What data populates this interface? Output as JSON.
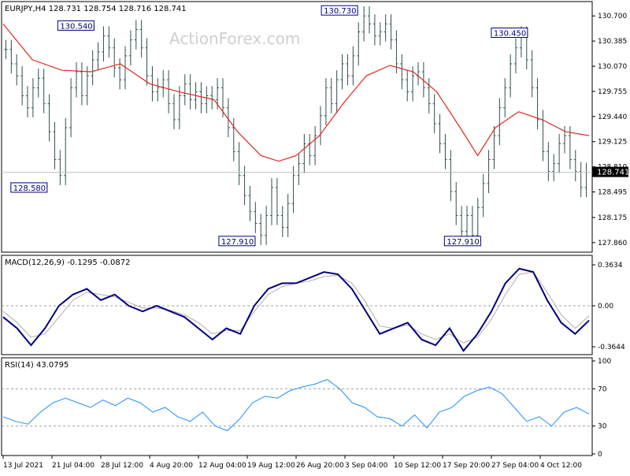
{
  "header": {
    "symbol_line": "EURJPY,H4  128.731 128.754 128.716 128.741",
    "watermark": "ActionForex.com"
  },
  "chart_data": [
    {
      "type": "line",
      "name": "price-panel",
      "ylim": [
        127.76,
        130.86
      ],
      "y_ticks": [
        "130.700",
        "130.385",
        "130.070",
        "129.755",
        "129.440",
        "129.125",
        "128.810",
        "128.495",
        "128.175",
        "127.860"
      ],
      "current_price_label": "128.741",
      "current_price": 128.741,
      "close": [
        130.28,
        130.1,
        129.95,
        129.7,
        129.55,
        129.8,
        129.92,
        129.6,
        129.25,
        128.9,
        128.7,
        129.3,
        129.8,
        130.0,
        129.7,
        129.95,
        130.15,
        130.25,
        130.45,
        130.3,
        130.05,
        129.9,
        130.2,
        130.4,
        130.53,
        130.3,
        129.95,
        129.75,
        129.8,
        129.9,
        129.6,
        129.4,
        129.7,
        129.85,
        129.65,
        129.75,
        129.6,
        129.7,
        129.65,
        129.8,
        129.55,
        129.3,
        129.0,
        128.7,
        128.45,
        128.25,
        128.1,
        127.95,
        128.2,
        128.55,
        128.2,
        128.05,
        128.35,
        128.7,
        128.85,
        129.1,
        128.95,
        129.2,
        129.45,
        129.8,
        129.6,
        129.9,
        130.1,
        129.95,
        130.2,
        130.5,
        130.7,
        130.6,
        130.45,
        130.5,
        130.6,
        130.4,
        130.1,
        129.9,
        129.75,
        129.95,
        130.0,
        129.8,
        129.6,
        129.35,
        129.1,
        128.9,
        128.5,
        128.2,
        128.0,
        128.2,
        127.95,
        128.3,
        128.6,
        128.9,
        129.2,
        129.55,
        129.8,
        130.1,
        130.3,
        130.45,
        130.15,
        129.8,
        129.4,
        129.0,
        128.75,
        128.85,
        129.1,
        129.2,
        128.9,
        128.75,
        128.55,
        128.74
      ],
      "ma_points": [
        [
          0,
          130.6
        ],
        [
          0.05,
          130.15
        ],
        [
          0.1,
          130.02
        ],
        [
          0.15,
          130.0
        ],
        [
          0.2,
          130.1
        ],
        [
          0.25,
          129.85
        ],
        [
          0.3,
          129.75
        ],
        [
          0.36,
          129.65
        ],
        [
          0.4,
          129.25
        ],
        [
          0.44,
          128.95
        ],
        [
          0.47,
          128.88
        ],
        [
          0.5,
          128.95
        ],
        [
          0.54,
          129.2
        ],
        [
          0.58,
          129.6
        ],
        [
          0.62,
          129.95
        ],
        [
          0.66,
          130.08
        ],
        [
          0.7,
          130.0
        ],
        [
          0.74,
          129.75
        ],
        [
          0.78,
          129.3
        ],
        [
          0.81,
          128.95
        ],
        [
          0.84,
          129.3
        ],
        [
          0.88,
          129.5
        ],
        [
          0.92,
          129.4
        ],
        [
          0.96,
          129.25
        ],
        [
          1.0,
          129.2
        ]
      ],
      "swing_labels": [
        {
          "text": "130.540",
          "x": 0.155,
          "value": 130.54
        },
        {
          "text": "128.580",
          "x": 0.075,
          "value": 128.58
        },
        {
          "text": "130.730",
          "x": 0.605,
          "value": 130.73
        },
        {
          "text": "127.910",
          "x": 0.43,
          "value": 127.91
        },
        {
          "text": "130.450",
          "x": 0.895,
          "value": 130.45
        },
        {
          "text": "127.910",
          "x": 0.815,
          "value": 127.91
        }
      ]
    },
    {
      "type": "line",
      "name": "macd-panel",
      "title": "MACD(12,26,9) -0.1295 -0.0872",
      "ylim": [
        -0.42,
        0.42
      ],
      "y_ticks": [
        "0.3634",
        "0.00",
        "-0.3644"
      ],
      "macd": [
        -0.1,
        -0.2,
        -0.35,
        -0.2,
        0.0,
        0.1,
        0.15,
        0.05,
        0.1,
        0.0,
        -0.05,
        0.0,
        -0.05,
        -0.1,
        -0.2,
        -0.3,
        -0.2,
        -0.25,
        0.0,
        0.15,
        0.2,
        0.2,
        0.25,
        0.3,
        0.28,
        0.15,
        -0.05,
        -0.25,
        -0.2,
        -0.15,
        -0.3,
        -0.35,
        -0.2,
        -0.4,
        -0.25,
        -0.05,
        0.2,
        0.33,
        0.3,
        0.05,
        -0.15,
        -0.25,
        -0.13
      ],
      "signal": [
        -0.05,
        -0.15,
        -0.28,
        -0.25,
        -0.1,
        0.05,
        0.12,
        0.1,
        0.08,
        0.03,
        -0.02,
        -0.02,
        -0.04,
        -0.08,
        -0.15,
        -0.25,
        -0.22,
        -0.22,
        -0.05,
        0.1,
        0.17,
        0.2,
        0.22,
        0.26,
        0.27,
        0.2,
        0.03,
        -0.18,
        -0.2,
        -0.17,
        -0.25,
        -0.3,
        -0.25,
        -0.33,
        -0.28,
        -0.12,
        0.1,
        0.28,
        0.3,
        0.12,
        -0.08,
        -0.2,
        -0.09
      ]
    },
    {
      "type": "line",
      "name": "rsi-panel",
      "title": "RSI(14) 43.0795",
      "ylim": [
        0,
        100
      ],
      "y_ticks": [
        "100",
        "70",
        "30",
        "0"
      ],
      "levels": [
        70,
        30
      ],
      "rsi": [
        40,
        35,
        32,
        45,
        55,
        60,
        55,
        50,
        58,
        52,
        60,
        55,
        45,
        50,
        40,
        35,
        45,
        30,
        25,
        38,
        55,
        62,
        60,
        68,
        72,
        75,
        80,
        70,
        55,
        50,
        40,
        38,
        30,
        42,
        28,
        45,
        50,
        62,
        68,
        72,
        65,
        50,
        35,
        40,
        30,
        45,
        50,
        43
      ]
    }
  ],
  "x_axis": {
    "tick_labels": [
      "13 Jul 2021",
      "21 Jul 04:00",
      "28 Jul 12:00",
      "4 Aug 20:00",
      "12 Aug 04:00",
      "19 Aug 12:00",
      "26 Aug 20:00",
      "3 Sep 04:00",
      "10 Sep 12:00",
      "17 Sep 20:00",
      "27 Sep 04:00",
      "4 Oct 12:00"
    ]
  },
  "colors": {
    "candle": "#2f4f4f",
    "ma_line": "#e0281f",
    "macd_line": "#000080",
    "signal_line": "#b8a8a8",
    "rsi_line": "#1e8fff",
    "label_text": "#000080",
    "axis": "#000000"
  }
}
